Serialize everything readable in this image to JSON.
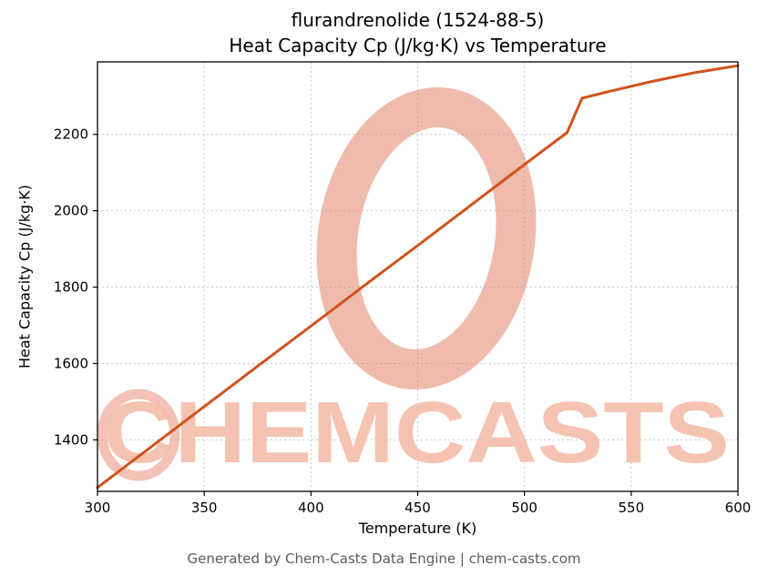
{
  "header": {
    "title_line1": "flurandrenolide (1524-88-5)",
    "title_line2": "Heat Capacity Cp (J/kg·K) vs Temperature"
  },
  "watermark": {
    "text": "CHEMCASTS",
    "text_color": "#f5bda9",
    "logo_color": "#e0785a"
  },
  "footer": {
    "text": "Generated by Chem-Casts Data Engine | chem-casts.com"
  },
  "chart_data": {
    "type": "line",
    "title": "flurandrenolide (1524-88-5) — Heat Capacity Cp (J/kg·K) vs Temperature",
    "xlabel": "Temperature (K)",
    "ylabel": "Heat Capacity Cp (J/kg·K)",
    "xlim": [
      300,
      600
    ],
    "ylim": [
      1265,
      2390
    ],
    "x_ticks": [
      300,
      350,
      400,
      450,
      500,
      550,
      600
    ],
    "y_ticks": [
      1400,
      1600,
      1800,
      2000,
      2200
    ],
    "grid": true,
    "legend": false,
    "line_color": "#d0531d",
    "series": [
      {
        "name": "Heat Capacity Cp",
        "x": [
          300,
          325,
          350,
          375,
          400,
          425,
          450,
          475,
          500,
          520,
          527,
          540,
          560,
          580,
          600
        ],
        "y": [
          1275,
          1381,
          1487,
          1593,
          1698,
          1804,
          1909,
          2015,
          2121,
          2205,
          2295,
          2313,
          2339,
          2362,
          2380
        ]
      }
    ]
  }
}
